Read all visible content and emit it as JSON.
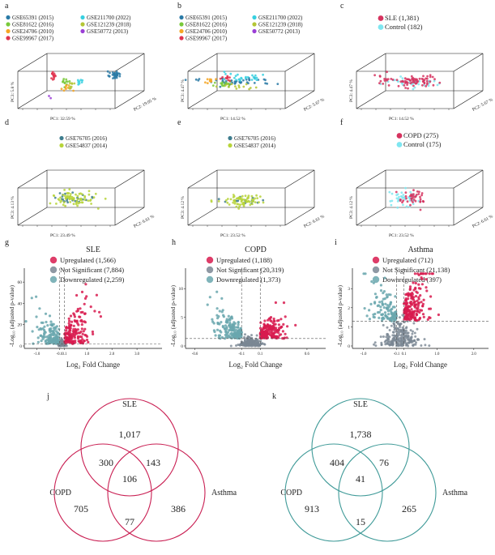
{
  "colors": {
    "sle": "#d6335f",
    "control": "#7fe6f0",
    "up": "#d81b4f",
    "ns": "#7b8794",
    "down": "#6aa7ae",
    "venn_up": "#c91e52",
    "venn_down": "#3f9a98",
    "gse65391": "#2a7aa6",
    "gse81622": "#79c93a",
    "gse24706": "#f6a623",
    "gse99967": "#e0344f",
    "gse211700": "#36d0e0",
    "gse121239": "#b4c635",
    "gse50772": "#9b3fd6",
    "gse76705": "#3e7d8e",
    "gse54837": "#b7d43a",
    "copd": "#d6335f"
  },
  "chart_data": [
    {
      "panel": "a",
      "type": "scatter",
      "legend": [
        "GSE65391 (2015)",
        "GSE81622 (2016)",
        "GSE24706 (2010)",
        "GSE99967 (2017)",
        "GSE211700 (2022)",
        "GSE121239 (2018)",
        "GSE50772 (2013)"
      ],
      "xlabel": "PC1: 32.59 %",
      "ylabel": "PC3: 5.8 %",
      "zlabel": "PC2: 19.05 %"
    },
    {
      "panel": "b",
      "type": "scatter",
      "legend": [
        "GSE65391 (2015)",
        "GSE81622 (2016)",
        "GSE24706 (2010)",
        "GSE99967 (2017)",
        "GSE211700 (2022)",
        "GSE121239 (2018)",
        "GSE50772 (2013)"
      ],
      "xlabel": "PC1: 14.52 %",
      "ylabel": "PC3: 4.47 %",
      "zlabel": "PC2: 5.67 %"
    },
    {
      "panel": "c",
      "type": "scatter",
      "legend": [
        "SLE (1,381)",
        "Control (182)"
      ],
      "xlabel": "PC1: 14.52 %",
      "ylabel": "PC3: 4.47 %",
      "zlabel": "PC2: 5.67 %"
    },
    {
      "panel": "d",
      "type": "scatter",
      "legend": [
        "GSE76705 (2016)",
        "GSE54837 (2014)"
      ],
      "xlabel": "PC1: 23.49 %",
      "ylabel": "PC3: 4.13 %",
      "zlabel": "PC2: 6.61 %"
    },
    {
      "panel": "e",
      "type": "scatter",
      "legend": [
        "GSE76705 (2016)",
        "GSE54837 (2014)"
      ],
      "xlabel": "PC1: 23.52 %",
      "ylabel": "PC3: 4.12 %",
      "zlabel": "PC2: 6.61 %"
    },
    {
      "panel": "f",
      "type": "scatter",
      "legend": [
        "COPD (275)",
        "Control (175)"
      ],
      "xlabel": "PC1: 23.52 %",
      "ylabel": "PC3: 4.12 %",
      "zlabel": "PC2: 6.61 %"
    },
    {
      "panel": "g",
      "type": "scatter",
      "title": "SLE",
      "legend": [
        "Upregulated (1,566)",
        "Not Significant (7,884)",
        "Downregulated (2,259)"
      ],
      "xlabel": "Log₂ Fold Change",
      "ylabel": "-Log₁₀ (adjusted p-value)",
      "xticks": [
        "-1.0",
        "-0.1",
        "0.1",
        "1.0",
        "2.0",
        "3.0"
      ],
      "xtick_values": [
        -1.0,
        -0.1,
        0.1,
        1.0,
        2.0,
        3.0
      ],
      "yticks": [
        "0",
        "20",
        "40",
        "60"
      ],
      "ytick_values": [
        0,
        20,
        40,
        60
      ],
      "xlim": [
        -1.5,
        4.0
      ],
      "ylim": [
        0,
        70
      ]
    },
    {
      "panel": "h",
      "type": "scatter",
      "title": "COPD",
      "legend": [
        "Upregulated (1,188)",
        "Not Significant (20,319)",
        "Downregulated (1,373)"
      ],
      "xlabel": "Log₂ Fold Change",
      "ylabel": "-Log₁₀ (adjusted p-value)",
      "xticks": [
        "-0.6",
        "-0.1",
        "0.1",
        "0.6"
      ],
      "xtick_values": [
        -0.6,
        -0.1,
        0.1,
        0.6
      ],
      "yticks": [
        "0",
        "5",
        "10"
      ],
      "ytick_values": [
        0,
        5,
        10
      ],
      "xlim": [
        -0.7,
        0.8
      ],
      "ylim": [
        0,
        13
      ]
    },
    {
      "panel": "i",
      "type": "scatter",
      "title": "Asthma",
      "legend": [
        "Upregulated (712)",
        "Not Significant (21,138)",
        "Downregulated (397)"
      ],
      "xlabel": "Log₂ Fold Change",
      "ylabel": "-Log₁₀ (adjusted p-value)",
      "xticks": [
        "-1.0",
        "-0.1",
        "0.1",
        "1.0",
        "2.0"
      ],
      "xtick_values": [
        -1.0,
        -0.1,
        0.1,
        1.0,
        2.0
      ],
      "yticks": [
        "0",
        "1",
        "2",
        "3"
      ],
      "ytick_values": [
        0,
        1,
        2,
        3
      ],
      "xlim": [
        -1.3,
        2.4
      ],
      "ylim": [
        0,
        3.9
      ]
    },
    {
      "panel": "j",
      "type": "venn",
      "sets": [
        "SLE",
        "COPD",
        "Asthma"
      ],
      "regions": {
        "SLE_only": "1,017",
        "COPD_only": "705",
        "Asthma_only": "386",
        "SLE_COPD": "300",
        "SLE_Asthma": "143",
        "COPD_Asthma": "77",
        "all": "106"
      }
    },
    {
      "panel": "k",
      "type": "venn",
      "sets": [
        "SLE",
        "COPD",
        "Asthma"
      ],
      "regions": {
        "SLE_only": "1,738",
        "COPD_only": "913",
        "Asthma_only": "265",
        "SLE_COPD": "404",
        "SLE_Asthma": "76",
        "COPD_Asthma": "15",
        "all": "41"
      }
    }
  ]
}
